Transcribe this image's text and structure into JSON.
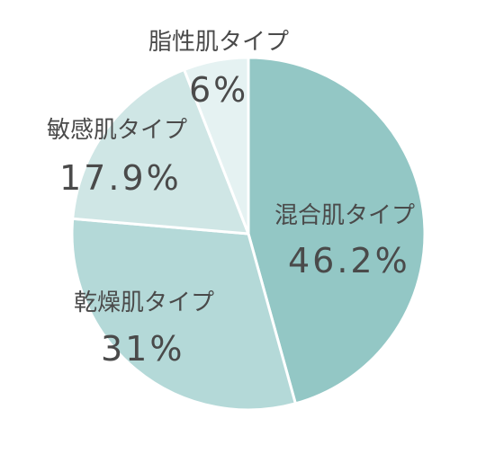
{
  "chart_data": {
    "type": "pie",
    "slices": [
      {
        "label": "混合肌タイプ",
        "value_text": "46.2%",
        "value": 46.2,
        "color": "#93c7c5"
      },
      {
        "label": "乾燥肌タイプ",
        "value_text": "31%",
        "value": 31.0,
        "color": "#b4d9d8"
      },
      {
        "label": "敏感肌タイプ",
        "value_text": "17.9%",
        "value": 17.9,
        "color": "#cfe6e5"
      },
      {
        "label": "脂性肌タイプ",
        "value_text": "6%",
        "value": 6.0,
        "color": "#e5f2f2"
      }
    ],
    "start_angle_deg": 0,
    "direction": "clockwise",
    "separator_color": "#ffffff"
  }
}
